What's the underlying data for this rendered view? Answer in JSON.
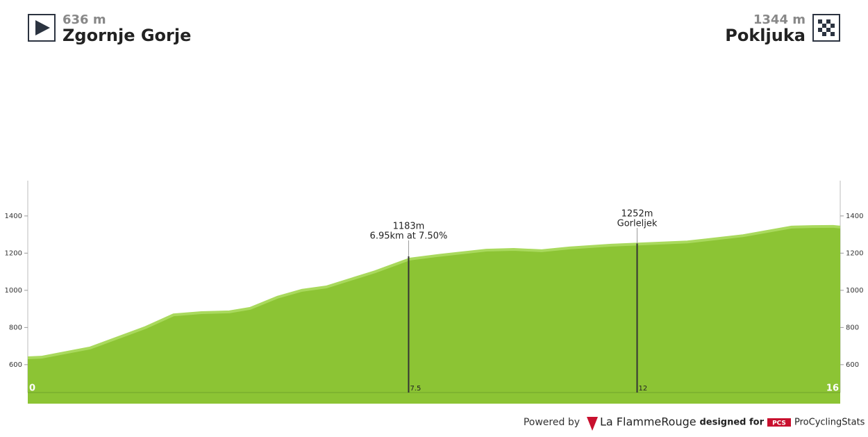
{
  "header": {
    "start": {
      "elevation": "636 m",
      "name": "Zgornje Gorje"
    },
    "finish": {
      "elevation": "1344 m",
      "name": "Pokljuka"
    }
  },
  "chart_data": {
    "type": "area",
    "x": [
      0,
      0.27,
      1.23,
      2.32,
      2.87,
      3.42,
      3.97,
      4.38,
      4.92,
      5.4,
      5.88,
      6.84,
      7.52,
      8.07,
      9.03,
      9.57,
      10.12,
      10.67,
      11.49,
      12.31,
      12.99,
      14.09,
      15.04,
      15.45,
      15.86,
      16
    ],
    "values": [
      637,
      640,
      690,
      800,
      868,
      880,
      884,
      903,
      963,
      1000,
      1018,
      1100,
      1168,
      1187,
      1216,
      1220,
      1213,
      1228,
      1243,
      1252,
      1260,
      1294,
      1340,
      1343,
      1344,
      1340
    ],
    "color": "#8cc434",
    "edge_color": "#a9d95d",
    "xlim": [
      0,
      16
    ],
    "xticks": [
      0,
      7.5,
      12,
      16
    ],
    "ylim": [
      450,
      1590
    ],
    "yticks": [
      600,
      800,
      1000,
      1200,
      1400
    ],
    "annotations": [
      {
        "x": 7.5,
        "y": 1183,
        "lines": [
          "1183m",
          "6.95km at 7.50%"
        ]
      },
      {
        "x": 12,
        "y": 1252,
        "lines": [
          "1252m",
          "Gorleljek"
        ]
      }
    ]
  },
  "footer": {
    "powered": "Powered by",
    "brand": "La FlammeRouge",
    "designed": "designed for",
    "pcs": "PCS",
    "site": "ProCyclingStats"
  }
}
